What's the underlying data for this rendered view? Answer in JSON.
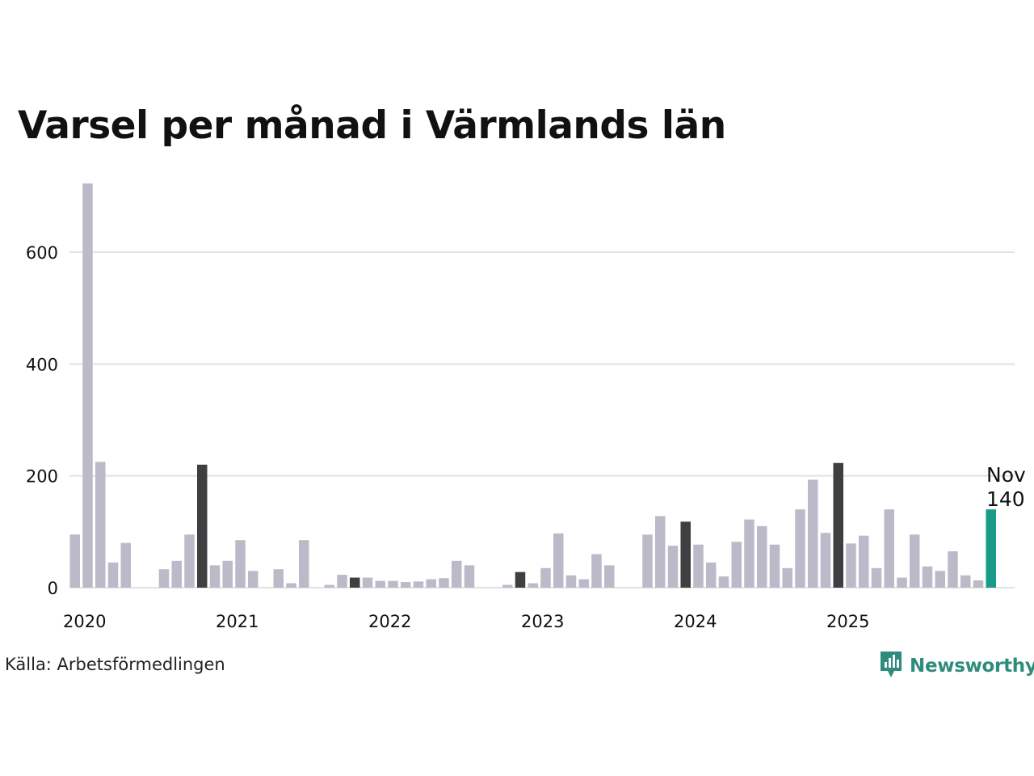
{
  "title": "Varsel per månad i Värmlands län",
  "source": "Källa: Arbetsförmedlingen",
  "brand": {
    "name": "Newsworthy",
    "icon": "newsworthy-logo-icon"
  },
  "colors": {
    "regular": "#bcbac8",
    "highlight": "#3f3f41",
    "latest": "#1a9a88",
    "grid": "#e2e2e2",
    "text": "#111111",
    "brand": "#2f8c7c"
  },
  "chart_data": {
    "type": "bar",
    "title": "Varsel per månad i Värmlands län",
    "xlabel": "",
    "ylabel": "",
    "ylim": [
      0,
      725
    ],
    "yticks": [
      0,
      200,
      400,
      600
    ],
    "x_tick_labels": [
      "2020",
      "2021",
      "2022",
      "2023",
      "2024",
      "2025"
    ],
    "grid": true,
    "annotation": {
      "month": "Nov",
      "value": "140"
    },
    "series": [
      {
        "name": "Varsel",
        "values": [
          95,
          723,
          225,
          45,
          80,
          0,
          0,
          33,
          48,
          95,
          220,
          40,
          48,
          85,
          30,
          0,
          33,
          8,
          85,
          0,
          5,
          23,
          18,
          18,
          12,
          12,
          10,
          11,
          15,
          17,
          48,
          40,
          0,
          0,
          5,
          28,
          8,
          35,
          97,
          22,
          15,
          60,
          40,
          0,
          0,
          95,
          128,
          75,
          118,
          77,
          45,
          20,
          82,
          122,
          110,
          77,
          35,
          140,
          193,
          98,
          223,
          79,
          93,
          35,
          140,
          18,
          95,
          38,
          30,
          65,
          22,
          13,
          140
        ],
        "highlight_indices": [
          10,
          22,
          35,
          48,
          60
        ],
        "latest_index": 72
      }
    ]
  }
}
